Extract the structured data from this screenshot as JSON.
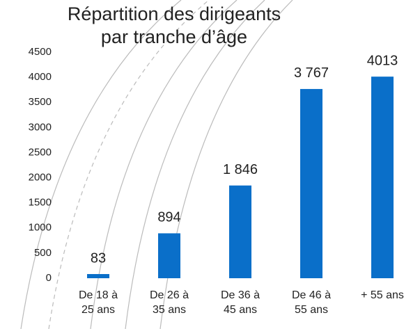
{
  "chart_data": {
    "type": "bar",
    "title": "Répartition des dirigeants par tranche d’âge",
    "categories": [
      "De 18 à 25 ans",
      "De 26 à 35 ans",
      "De 36 à 45 ans",
      "De 46 à 55 ans",
      "+ 55 ans"
    ],
    "values": [
      83,
      894,
      1846,
      3767,
      4013
    ],
    "value_labels": [
      "83",
      "894",
      "1 846",
      "3 767",
      "4013"
    ],
    "color": "#0a6fc9",
    "ylim": [
      0,
      4500
    ],
    "yticks": [
      0,
      500,
      1000,
      1500,
      2000,
      2500,
      3000,
      3500,
      4000,
      4500
    ],
    "grid": false
  }
}
